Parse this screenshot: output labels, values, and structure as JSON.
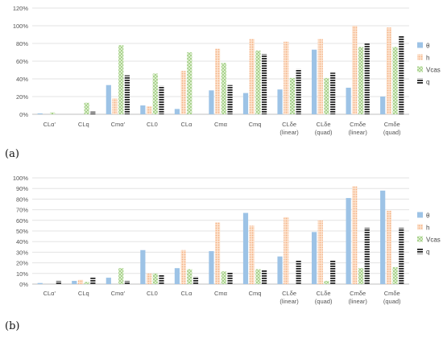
{
  "panels": [
    {
      "label": "(a)"
    },
    {
      "label": "(b)"
    }
  ],
  "series_style": [
    {
      "name": "θ",
      "color": "#8fb4e3",
      "pattern": "solid"
    },
    {
      "name": "h",
      "color": "#f9c9a6",
      "pattern": "dots"
    },
    {
      "name": "Vcas",
      "color": "#bfe0a8",
      "pattern": "checks"
    },
    {
      "name": "q",
      "color": "#3a3a3a",
      "pattern": "hstripes"
    }
  ],
  "chart_data": [
    {
      "type": "bar",
      "title": "",
      "xlabel": "",
      "ylabel": "",
      "categories": [
        [
          "CLα'"
        ],
        [
          "CLq"
        ],
        [
          "Cmα'"
        ],
        [
          "CL0"
        ],
        [
          "CLα"
        ],
        [
          "Cmα"
        ],
        [
          "Cmq"
        ],
        [
          "CLδe",
          "(linear)"
        ],
        [
          "CLδe",
          "(quad)"
        ],
        [
          "Cmδe",
          "(linear)"
        ],
        [
          "Cmδe",
          "(quad)"
        ]
      ],
      "yticks": [
        "0%",
        "20%",
        "40%",
        "60%",
        "80%",
        "100%",
        "120%"
      ],
      "ylim": [
        0,
        120
      ],
      "grid": true,
      "legend": "right",
      "series": [
        {
          "name": "θ",
          "values": [
            1,
            0,
            33,
            10,
            6,
            27,
            24,
            28,
            73,
            30,
            20
          ]
        },
        {
          "name": "h",
          "values": [
            0,
            0,
            18,
            9,
            49,
            74,
            85,
            82,
            85,
            100,
            98
          ]
        },
        {
          "name": "Vcas",
          "values": [
            2,
            13,
            78,
            46,
            70,
            58,
            72,
            41,
            41,
            76,
            76
          ]
        },
        {
          "name": "q",
          "values": [
            0,
            3,
            44,
            32,
            0,
            33,
            68,
            51,
            47,
            81,
            89
          ]
        }
      ]
    },
    {
      "type": "bar",
      "title": "",
      "xlabel": "",
      "ylabel": "",
      "categories": [
        [
          "CLα'"
        ],
        [
          "CLq"
        ],
        [
          "Cmα'"
        ],
        [
          "CL0"
        ],
        [
          "CLα"
        ],
        [
          "Cmα"
        ],
        [
          "Cmq"
        ],
        [
          "CLδe",
          "(linear)"
        ],
        [
          "CLδe",
          "(quad)"
        ],
        [
          "Cmδe",
          "(linear)"
        ],
        [
          "Cmδe",
          "(quad)"
        ]
      ],
      "yticks": [
        "0%",
        "10%",
        "20%",
        "30%",
        "40%",
        "50%",
        "60%",
        "70%",
        "80%",
        "90%",
        "100%"
      ],
      "ylim": [
        0,
        100
      ],
      "grid": true,
      "legend": "right",
      "series": [
        {
          "name": "θ",
          "values": [
            1,
            3,
            6,
            32,
            15,
            31,
            67,
            26,
            49,
            81,
            88
          ]
        },
        {
          "name": "h",
          "values": [
            0,
            4,
            0,
            10,
            32,
            58,
            55,
            63,
            60,
            92,
            69
          ]
        },
        {
          "name": "Vcas",
          "values": [
            0,
            2,
            15,
            10,
            14,
            12,
            14,
            0,
            3,
            15,
            16
          ]
        },
        {
          "name": "q",
          "values": [
            3,
            6,
            3,
            9,
            7,
            11,
            13,
            22,
            22,
            53,
            53
          ]
        }
      ]
    }
  ]
}
